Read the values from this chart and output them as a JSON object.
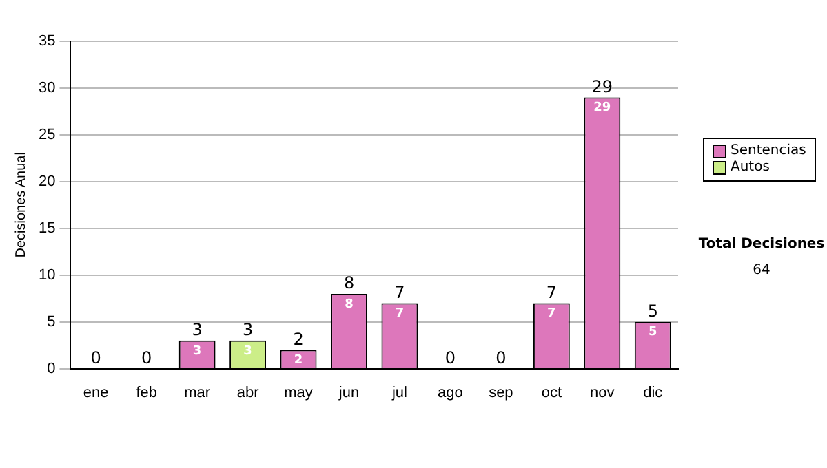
{
  "chart_data": {
    "type": "bar",
    "stacked": true,
    "ylabel": "Decisiones Anual",
    "categories": [
      "ene",
      "feb",
      "mar",
      "abr",
      "may",
      "jun",
      "jul",
      "ago",
      "sep",
      "oct",
      "nov",
      "dic"
    ],
    "series": [
      {
        "name": "Sentencias",
        "color": "#dd77bb",
        "values": [
          0,
          0,
          3,
          0,
          2,
          8,
          7,
          0,
          0,
          7,
          29,
          5
        ],
        "value_labels": [
          null,
          null,
          "3",
          null,
          "2",
          "8",
          "7",
          null,
          null,
          "7",
          "29",
          "5"
        ]
      },
      {
        "name": "Autos",
        "color": "#ccee88",
        "values": [
          0,
          0,
          0,
          3,
          0,
          0,
          0,
          0,
          0,
          0,
          0,
          0
        ],
        "value_labels": [
          null,
          null,
          null,
          "3",
          null,
          null,
          null,
          null,
          null,
          null,
          null,
          null
        ]
      }
    ],
    "totals": [
      "0",
      "0",
      "3",
      "3",
      "2",
      "8",
      "7",
      "0",
      "0",
      "7",
      "29",
      "5"
    ],
    "ylim": [
      0,
      35
    ],
    "yticks": [
      0,
      5,
      10,
      15,
      20,
      25,
      30,
      35
    ],
    "grid": "y",
    "legend": "right",
    "annotations": [
      "Total Decisiones",
      "64"
    ]
  }
}
